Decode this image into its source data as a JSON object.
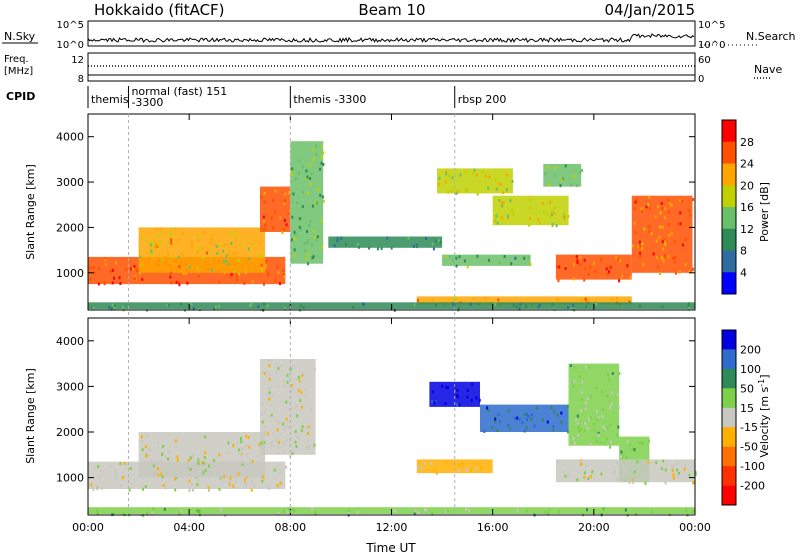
{
  "header": {
    "station": "Hokkaido (fitACF)",
    "beam": "Beam 10",
    "date": "04/Jan/2015"
  },
  "strip": {
    "nsky_label": "N.Sky",
    "nsky_ticks": [
      "10^5",
      "10^0"
    ],
    "nsearch_label": "N.Search",
    "nsearch_ticks": [
      "10^5",
      "10^0"
    ],
    "freq_label_1": "Freq.",
    "freq_label_2": "[MHz]",
    "freq_ticks": [
      "12",
      "8"
    ],
    "nave_label": "Nave",
    "nave_ticks": [
      "60",
      "0"
    ],
    "cpid_label": "CPID",
    "cpid_segments": [
      {
        "start_hour": 0.0,
        "label": "themis"
      },
      {
        "start_hour": 1.6,
        "label": "normal (fast) 151",
        "label2": "-3300"
      },
      {
        "start_hour": 8.0,
        "label": "themis -3300"
      },
      {
        "start_hour": 14.5,
        "label": "rbsp 200"
      }
    ]
  },
  "chart_data": [
    {
      "type": "heatmap",
      "panel": "power",
      "ylabel": "Slant Range [km]",
      "xlabel": "",
      "xlim_hours": [
        0,
        24
      ],
      "ylim_km": [
        180,
        4500
      ],
      "x_ticks": [
        "00:00",
        "04:00",
        "08:00",
        "12:00",
        "16:00",
        "20:00",
        "00:00"
      ],
      "y_ticks": [
        "1000",
        "2000",
        "3000",
        "4000"
      ],
      "colorbar_label": "Power [dB]",
      "colorbar_ticks": [
        "4",
        "8",
        "12",
        "16",
        "20",
        "24",
        "28"
      ],
      "colorbar_colors": [
        "#0000ff",
        "#2e6b9e",
        "#2e8b57",
        "#6abf69",
        "#c0d000",
        "#ffa500",
        "#ff5000",
        "#ff0000"
      ],
      "vmin": 0,
      "vmax": 32,
      "regions": [
        {
          "t0": 0.0,
          "t1": 7.8,
          "r0": 750,
          "r1": 1350,
          "v": 27
        },
        {
          "t0": 2.0,
          "t1": 7.0,
          "r0": 1000,
          "r1": 2000,
          "v": 20
        },
        {
          "t0": 6.8,
          "t1": 8.0,
          "r0": 1900,
          "r1": 2900,
          "v": 25
        },
        {
          "t0": 8.0,
          "t1": 9.3,
          "r0": 1200,
          "r1": 3900,
          "v": 14
        },
        {
          "t0": 9.5,
          "t1": 14.0,
          "r0": 1550,
          "r1": 1800,
          "v": 9
        },
        {
          "t0": 13.8,
          "t1": 16.8,
          "r0": 2750,
          "r1": 3300,
          "v": 19
        },
        {
          "t0": 16.0,
          "t1": 19.0,
          "r0": 2050,
          "r1": 2700,
          "v": 18
        },
        {
          "t0": 14.0,
          "t1": 17.5,
          "r0": 1150,
          "r1": 1400,
          "v": 12
        },
        {
          "t0": 18.5,
          "t1": 21.5,
          "r0": 850,
          "r1": 1400,
          "v": 27
        },
        {
          "t0": 21.5,
          "t1": 23.9,
          "r0": 1000,
          "r1": 2700,
          "v": 24
        },
        {
          "t0": 18.0,
          "t1": 19.5,
          "r0": 2900,
          "r1": 3400,
          "v": 13
        },
        {
          "t0": 13.0,
          "t1": 21.5,
          "r0": 300,
          "r1": 480,
          "v": 22
        },
        {
          "t0": 0.0,
          "t1": 24.0,
          "r0": 200,
          "r1": 350,
          "v": 11
        }
      ]
    },
    {
      "type": "heatmap",
      "panel": "velocity",
      "ylabel": "Slant Range [km]",
      "xlabel": "Time UT",
      "xlim_hours": [
        0,
        24
      ],
      "ylim_km": [
        180,
        4500
      ],
      "x_ticks": [
        "00:00",
        "04:00",
        "08:00",
        "12:00",
        "16:00",
        "20:00",
        "00:00"
      ],
      "y_ticks": [
        "1000",
        "2000",
        "3000",
        "4000"
      ],
      "colorbar_label_1": "Velocity [m s",
      "colorbar_label_sup": "-1",
      "colorbar_label_2": "]",
      "colorbar_ticks": [
        "200",
        "100",
        "50",
        "15",
        "-15",
        "-50",
        "-100",
        "-200"
      ],
      "colorbar_colors": [
        "#0000e0",
        "#2e6bcc",
        "#2e8b57",
        "#7cd04a",
        "#c8c8c0",
        "#ffb000",
        "#ff7000",
        "#ff3000",
        "#ff0000"
      ],
      "vmin": -250,
      "vmax": 250,
      "regions": [
        {
          "t0": 0.0,
          "t1": 7.8,
          "r0": 750,
          "r1": 1350,
          "v": 0
        },
        {
          "t0": 2.0,
          "t1": 7.0,
          "r0": 1000,
          "r1": 2000,
          "v": 5
        },
        {
          "t0": 6.8,
          "t1": 9.0,
          "r0": 1500,
          "r1": 3600,
          "v": 0
        },
        {
          "t0": 13.5,
          "t1": 15.5,
          "r0": 2550,
          "r1": 3100,
          "v": 230
        },
        {
          "t0": 15.5,
          "t1": 19.0,
          "r0": 2000,
          "r1": 2600,
          "v": 160
        },
        {
          "t0": 19.0,
          "t1": 21.0,
          "r0": 1700,
          "r1": 3500,
          "v": 40
        },
        {
          "t0": 21.0,
          "t1": 22.2,
          "r0": 900,
          "r1": 1900,
          "v": 45
        },
        {
          "t0": 18.5,
          "t1": 24.0,
          "r0": 900,
          "r1": 1400,
          "v": 0
        },
        {
          "t0": 13.0,
          "t1": 16.0,
          "r0": 1100,
          "r1": 1400,
          "v": -30
        },
        {
          "t0": 0.0,
          "t1": 24.0,
          "r0": 200,
          "r1": 350,
          "v": 35
        }
      ]
    }
  ]
}
